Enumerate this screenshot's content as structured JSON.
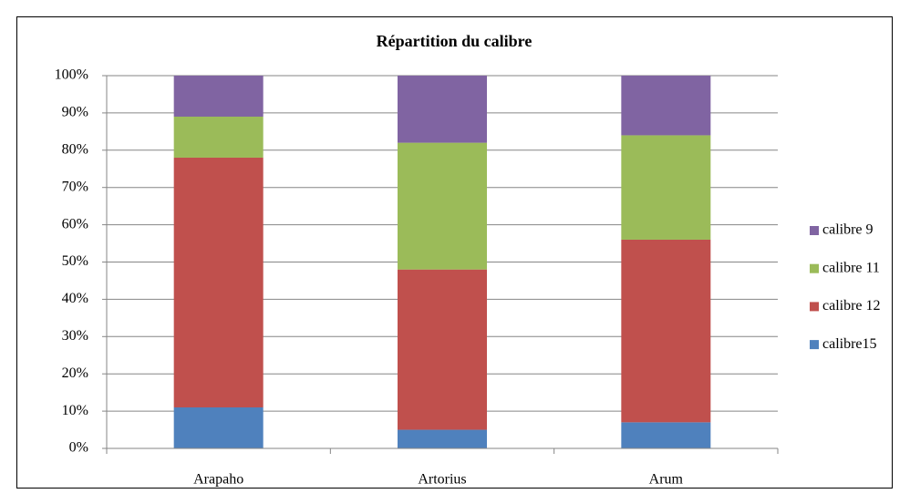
{
  "chart_data": {
    "type": "stacked_bar_100",
    "title": "Répartition du calibre",
    "categories": [
      "Arapaho",
      "Artorius",
      "Arum"
    ],
    "series": [
      {
        "name": "calibre15",
        "color": "#4f81bd",
        "values": [
          11,
          5,
          7
        ]
      },
      {
        "name": "calibre 12",
        "color": "#c0504d",
        "values": [
          67,
          43,
          49
        ]
      },
      {
        "name": "calibre 11",
        "color": "#9bbb59",
        "values": [
          11,
          34,
          28
        ]
      },
      {
        "name": "calibre 9",
        "color": "#8064a2",
        "values": [
          11,
          18,
          16
        ]
      }
    ],
    "ylim": [
      0,
      100
    ],
    "yticks": [
      {
        "value": 0,
        "label": "0%"
      },
      {
        "value": 10,
        "label": "10%"
      },
      {
        "value": 20,
        "label": "20%"
      },
      {
        "value": 30,
        "label": "30%"
      },
      {
        "value": 40,
        "label": "40%"
      },
      {
        "value": 50,
        "label": "50%"
      },
      {
        "value": 60,
        "label": "60%"
      },
      {
        "value": 70,
        "label": "70%"
      },
      {
        "value": 80,
        "label": "80%"
      },
      {
        "value": 90,
        "label": "90%"
      },
      {
        "value": 100,
        "label": "100%"
      }
    ],
    "grid": true,
    "legend": "right"
  }
}
